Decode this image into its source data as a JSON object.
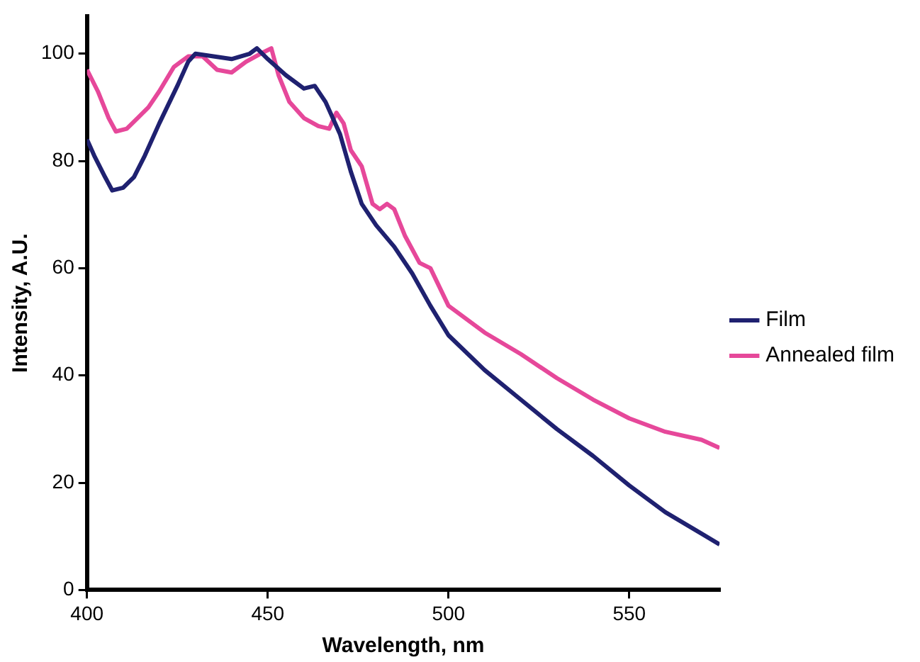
{
  "chart_data": {
    "type": "line",
    "xlabel": "Wavelength, nm",
    "ylabel": "Intensity, A.U.",
    "xlim": [
      400,
      575
    ],
    "xticks": [
      400,
      450,
      500,
      550
    ],
    "ylim": [
      0,
      107
    ],
    "yticks": [
      0,
      20,
      40,
      60,
      80,
      100
    ],
    "grid": false,
    "legend": "right",
    "marker": "none",
    "line_style": "solid",
    "series": [
      {
        "name": "Film",
        "color": "#1f2170",
        "x": [
          400,
          402,
          405,
          407,
          410,
          413,
          416,
          420,
          425,
          428,
          430,
          435,
          440,
          445,
          447,
          450,
          455,
          460,
          463,
          466,
          470,
          473,
          476,
          480,
          485,
          490,
          495,
          500,
          510,
          520,
          530,
          540,
          550,
          560,
          570,
          575
        ],
        "values": [
          84,
          81,
          77,
          74.5,
          75,
          77,
          81,
          87,
          94,
          98.5,
          100,
          99.5,
          99,
          100,
          101,
          99,
          96,
          93.5,
          94,
          91,
          85,
          78,
          72,
          68,
          64,
          59,
          53,
          47.5,
          41,
          35.5,
          30,
          25,
          19.5,
          14.5,
          10.5,
          8.5
        ]
      },
      {
        "name": "Annealed film",
        "color": "#e6489a",
        "x": [
          400,
          403,
          406,
          408,
          411,
          414,
          417,
          420,
          424,
          428,
          432,
          436,
          440,
          444,
          448,
          451,
          453,
          456,
          460,
          464,
          467,
          469,
          471,
          473,
          476,
          479,
          481,
          483,
          485,
          488,
          492,
          495,
          500,
          510,
          520,
          530,
          540,
          550,
          560,
          570,
          575
        ],
        "values": [
          97,
          93,
          88,
          85.5,
          86,
          88,
          90,
          93,
          97.5,
          99.5,
          99.5,
          97,
          96.5,
          98.5,
          100,
          101,
          96,
          91,
          88,
          86.5,
          86,
          89,
          87,
          82,
          79,
          72,
          71,
          72,
          71,
          66,
          61,
          60,
          53,
          48,
          44,
          39.5,
          35.5,
          32,
          29.5,
          28,
          26.5
        ]
      }
    ]
  }
}
